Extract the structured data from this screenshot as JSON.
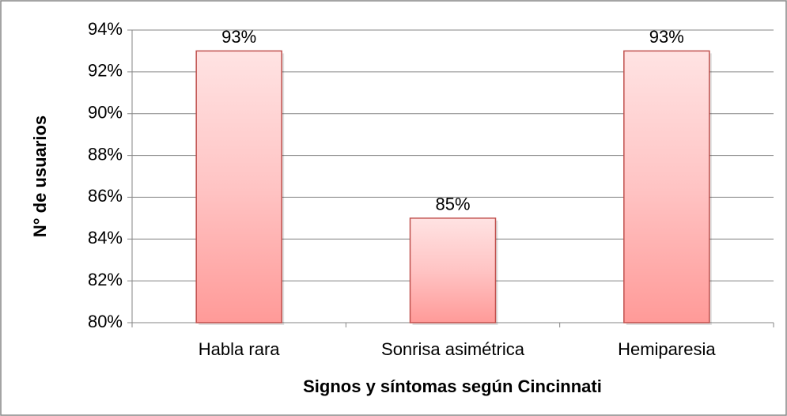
{
  "chart_data": {
    "type": "bar",
    "categories": [
      "Habla rara",
      "Sonrisa asimétrica",
      "Hemiparesia"
    ],
    "values": [
      93,
      85,
      93
    ],
    "value_labels": [
      "93%",
      "85%",
      "93%"
    ],
    "color": "#c0504d",
    "xlabel": "Signos y síntomas según Cincinnati",
    "ylabel": "N° de usuarios",
    "ylim": [
      80,
      94
    ],
    "yticks": [
      {
        "value": 80,
        "label": "80%"
      },
      {
        "value": 82,
        "label": "82%"
      },
      {
        "value": 84,
        "label": "84%"
      },
      {
        "value": 86,
        "label": "86%"
      },
      {
        "value": 88,
        "label": "88%"
      },
      {
        "value": 90,
        "label": "90%"
      },
      {
        "value": 92,
        "label": "92%"
      },
      {
        "value": 94,
        "label": "94%"
      }
    ],
    "grid": true
  }
}
